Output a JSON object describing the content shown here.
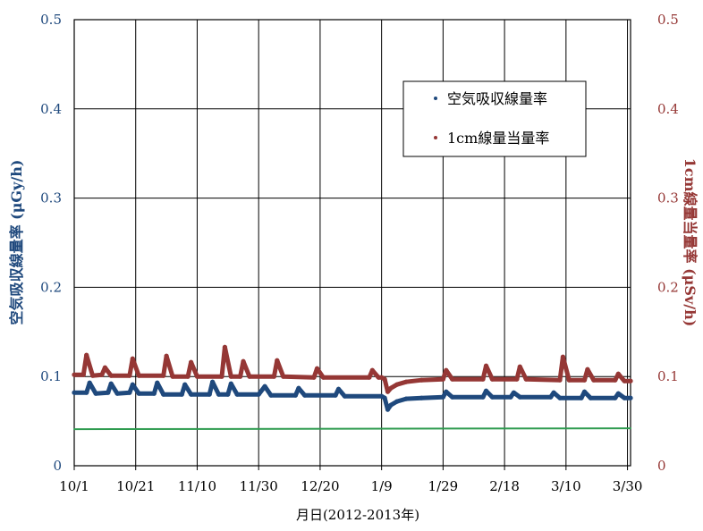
{
  "chart_data": {
    "type": "scatter",
    "xlabel": "月日(2012-2013年)",
    "ylabel_left": "空気吸収線量率 (μGy/h)",
    "ylabel_right": "1cm線量当量率 (μSv/h)",
    "xlim": [
      "2012-10-01",
      "2013-03-31"
    ],
    "ylim": [
      0,
      0.5
    ],
    "y_right_lim": [
      0,
      0.5
    ],
    "y_ticks": [
      "0",
      "0.1",
      "0.2",
      "0.3",
      "0.4",
      "0.5"
    ],
    "x_ticks": [
      {
        "date": "2012-10-01",
        "label": "10/1"
      },
      {
        "date": "2012-10-21",
        "label": "10/21"
      },
      {
        "date": "2012-11-10",
        "label": "11/10"
      },
      {
        "date": "2012-11-30",
        "label": "11/30"
      },
      {
        "date": "2012-12-20",
        "label": "12/20"
      },
      {
        "date": "2013-01-09",
        "label": "1/9"
      },
      {
        "date": "2013-01-29",
        "label": "1/29"
      },
      {
        "date": "2013-02-18",
        "label": "2/18"
      },
      {
        "date": "2013-03-10",
        "label": "3/10"
      },
      {
        "date": "2013-03-30",
        "label": "3/30"
      }
    ],
    "grid": true,
    "legend_position": "top-right",
    "series": [
      {
        "name": "空気吸収線量率",
        "color": "#1f497d",
        "axis": "left",
        "points": [
          {
            "x": "2012-10-01",
            "y": 0.082
          },
          {
            "x": "2012-10-05",
            "y": 0.082
          },
          {
            "x": "2012-10-06",
            "y": 0.093
          },
          {
            "x": "2012-10-08",
            "y": 0.081
          },
          {
            "x": "2012-10-12",
            "y": 0.082
          },
          {
            "x": "2012-10-13",
            "y": 0.092
          },
          {
            "x": "2012-10-15",
            "y": 0.081
          },
          {
            "x": "2012-10-19",
            "y": 0.082
          },
          {
            "x": "2012-10-20",
            "y": 0.091
          },
          {
            "x": "2012-10-22",
            "y": 0.081
          },
          {
            "x": "2012-10-27",
            "y": 0.081
          },
          {
            "x": "2012-10-28",
            "y": 0.093
          },
          {
            "x": "2012-10-30",
            "y": 0.08
          },
          {
            "x": "2012-11-05",
            "y": 0.08
          },
          {
            "x": "2012-11-06",
            "y": 0.091
          },
          {
            "x": "2012-11-08",
            "y": 0.08
          },
          {
            "x": "2012-11-14",
            "y": 0.08
          },
          {
            "x": "2012-11-15",
            "y": 0.094
          },
          {
            "x": "2012-11-17",
            "y": 0.08
          },
          {
            "x": "2012-11-20",
            "y": 0.08
          },
          {
            "x": "2012-11-21",
            "y": 0.092
          },
          {
            "x": "2012-11-23",
            "y": 0.08
          },
          {
            "x": "2012-11-30",
            "y": 0.08
          },
          {
            "x": "2012-12-02",
            "y": 0.089
          },
          {
            "x": "2012-12-04",
            "y": 0.079
          },
          {
            "x": "2012-12-12",
            "y": 0.079
          },
          {
            "x": "2012-12-13",
            "y": 0.087
          },
          {
            "x": "2012-12-15",
            "y": 0.079
          },
          {
            "x": "2012-12-25",
            "y": 0.079
          },
          {
            "x": "2012-12-26",
            "y": 0.086
          },
          {
            "x": "2012-12-28",
            "y": 0.078
          },
          {
            "x": "2013-01-09",
            "y": 0.078
          },
          {
            "x": "2013-01-10",
            "y": 0.076
          },
          {
            "x": "2013-01-11",
            "y": 0.063
          },
          {
            "x": "2013-01-12",
            "y": 0.068
          },
          {
            "x": "2013-01-14",
            "y": 0.072
          },
          {
            "x": "2013-01-17",
            "y": 0.075
          },
          {
            "x": "2013-01-22",
            "y": 0.076
          },
          {
            "x": "2013-01-29",
            "y": 0.077
          },
          {
            "x": "2013-01-30",
            "y": 0.083
          },
          {
            "x": "2013-02-01",
            "y": 0.077
          },
          {
            "x": "2013-02-11",
            "y": 0.077
          },
          {
            "x": "2013-02-12",
            "y": 0.084
          },
          {
            "x": "2013-02-14",
            "y": 0.077
          },
          {
            "x": "2013-02-20",
            "y": 0.077
          },
          {
            "x": "2013-02-21",
            "y": 0.082
          },
          {
            "x": "2013-02-23",
            "y": 0.077
          },
          {
            "x": "2013-03-05",
            "y": 0.077
          },
          {
            "x": "2013-03-06",
            "y": 0.082
          },
          {
            "x": "2013-03-08",
            "y": 0.076
          },
          {
            "x": "2013-03-15",
            "y": 0.076
          },
          {
            "x": "2013-03-16",
            "y": 0.083
          },
          {
            "x": "2013-03-18",
            "y": 0.076
          },
          {
            "x": "2013-03-26",
            "y": 0.076
          },
          {
            "x": "2013-03-27",
            "y": 0.081
          },
          {
            "x": "2013-03-29",
            "y": 0.076
          },
          {
            "x": "2013-03-31",
            "y": 0.076
          }
        ]
      },
      {
        "name": "1cm線量当量率",
        "color": "#953735",
        "axis": "right",
        "points": [
          {
            "x": "2012-10-01",
            "y": 0.102
          },
          {
            "x": "2012-10-04",
            "y": 0.102
          },
          {
            "x": "2012-10-05",
            "y": 0.124
          },
          {
            "x": "2012-10-07",
            "y": 0.101
          },
          {
            "x": "2012-10-10",
            "y": 0.102
          },
          {
            "x": "2012-10-11",
            "y": 0.11
          },
          {
            "x": "2012-10-13",
            "y": 0.101
          },
          {
            "x": "2012-10-19",
            "y": 0.101
          },
          {
            "x": "2012-10-20",
            "y": 0.12
          },
          {
            "x": "2012-10-22",
            "y": 0.101
          },
          {
            "x": "2012-10-30",
            "y": 0.101
          },
          {
            "x": "2012-10-31",
            "y": 0.123
          },
          {
            "x": "2012-11-02",
            "y": 0.1
          },
          {
            "x": "2012-11-07",
            "y": 0.1
          },
          {
            "x": "2012-11-08",
            "y": 0.116
          },
          {
            "x": "2012-11-10",
            "y": 0.1
          },
          {
            "x": "2012-11-18",
            "y": 0.1
          },
          {
            "x": "2012-11-19",
            "y": 0.133
          },
          {
            "x": "2012-11-21",
            "y": 0.1
          },
          {
            "x": "2012-11-24",
            "y": 0.1
          },
          {
            "x": "2012-11-25",
            "y": 0.117
          },
          {
            "x": "2012-11-27",
            "y": 0.1
          },
          {
            "x": "2012-12-05",
            "y": 0.1
          },
          {
            "x": "2012-12-06",
            "y": 0.118
          },
          {
            "x": "2012-12-08",
            "y": 0.1
          },
          {
            "x": "2012-12-18",
            "y": 0.099
          },
          {
            "x": "2012-12-19",
            "y": 0.109
          },
          {
            "x": "2012-12-21",
            "y": 0.099
          },
          {
            "x": "2013-01-05",
            "y": 0.099
          },
          {
            "x": "2013-01-06",
            "y": 0.107
          },
          {
            "x": "2013-01-08",
            "y": 0.099
          },
          {
            "x": "2013-01-09",
            "y": 0.099
          },
          {
            "x": "2013-01-10",
            "y": 0.097
          },
          {
            "x": "2013-01-11",
            "y": 0.083
          },
          {
            "x": "2013-01-12",
            "y": 0.087
          },
          {
            "x": "2013-01-14",
            "y": 0.091
          },
          {
            "x": "2013-01-17",
            "y": 0.094
          },
          {
            "x": "2013-01-22",
            "y": 0.096
          },
          {
            "x": "2013-01-29",
            "y": 0.097
          },
          {
            "x": "2013-01-30",
            "y": 0.107
          },
          {
            "x": "2013-02-01",
            "y": 0.097
          },
          {
            "x": "2013-02-11",
            "y": 0.097
          },
          {
            "x": "2013-02-12",
            "y": 0.112
          },
          {
            "x": "2013-02-14",
            "y": 0.097
          },
          {
            "x": "2013-02-22",
            "y": 0.097
          },
          {
            "x": "2013-02-23",
            "y": 0.111
          },
          {
            "x": "2013-02-25",
            "y": 0.097
          },
          {
            "x": "2013-03-08",
            "y": 0.096
          },
          {
            "x": "2013-03-09",
            "y": 0.122
          },
          {
            "x": "2013-03-11",
            "y": 0.096
          },
          {
            "x": "2013-03-16",
            "y": 0.096
          },
          {
            "x": "2013-03-17",
            "y": 0.108
          },
          {
            "x": "2013-03-19",
            "y": 0.096
          },
          {
            "x": "2013-03-26",
            "y": 0.096
          },
          {
            "x": "2013-03-27",
            "y": 0.103
          },
          {
            "x": "2013-03-29",
            "y": 0.095
          },
          {
            "x": "2013-03-31",
            "y": 0.095
          }
        ]
      },
      {
        "color": "#2e9b4f",
        "axis": "left",
        "points": [
          {
            "x": "2012-10-01",
            "y": 0.041
          },
          {
            "x": "2013-03-31",
            "y": 0.042
          }
        ]
      }
    ]
  }
}
